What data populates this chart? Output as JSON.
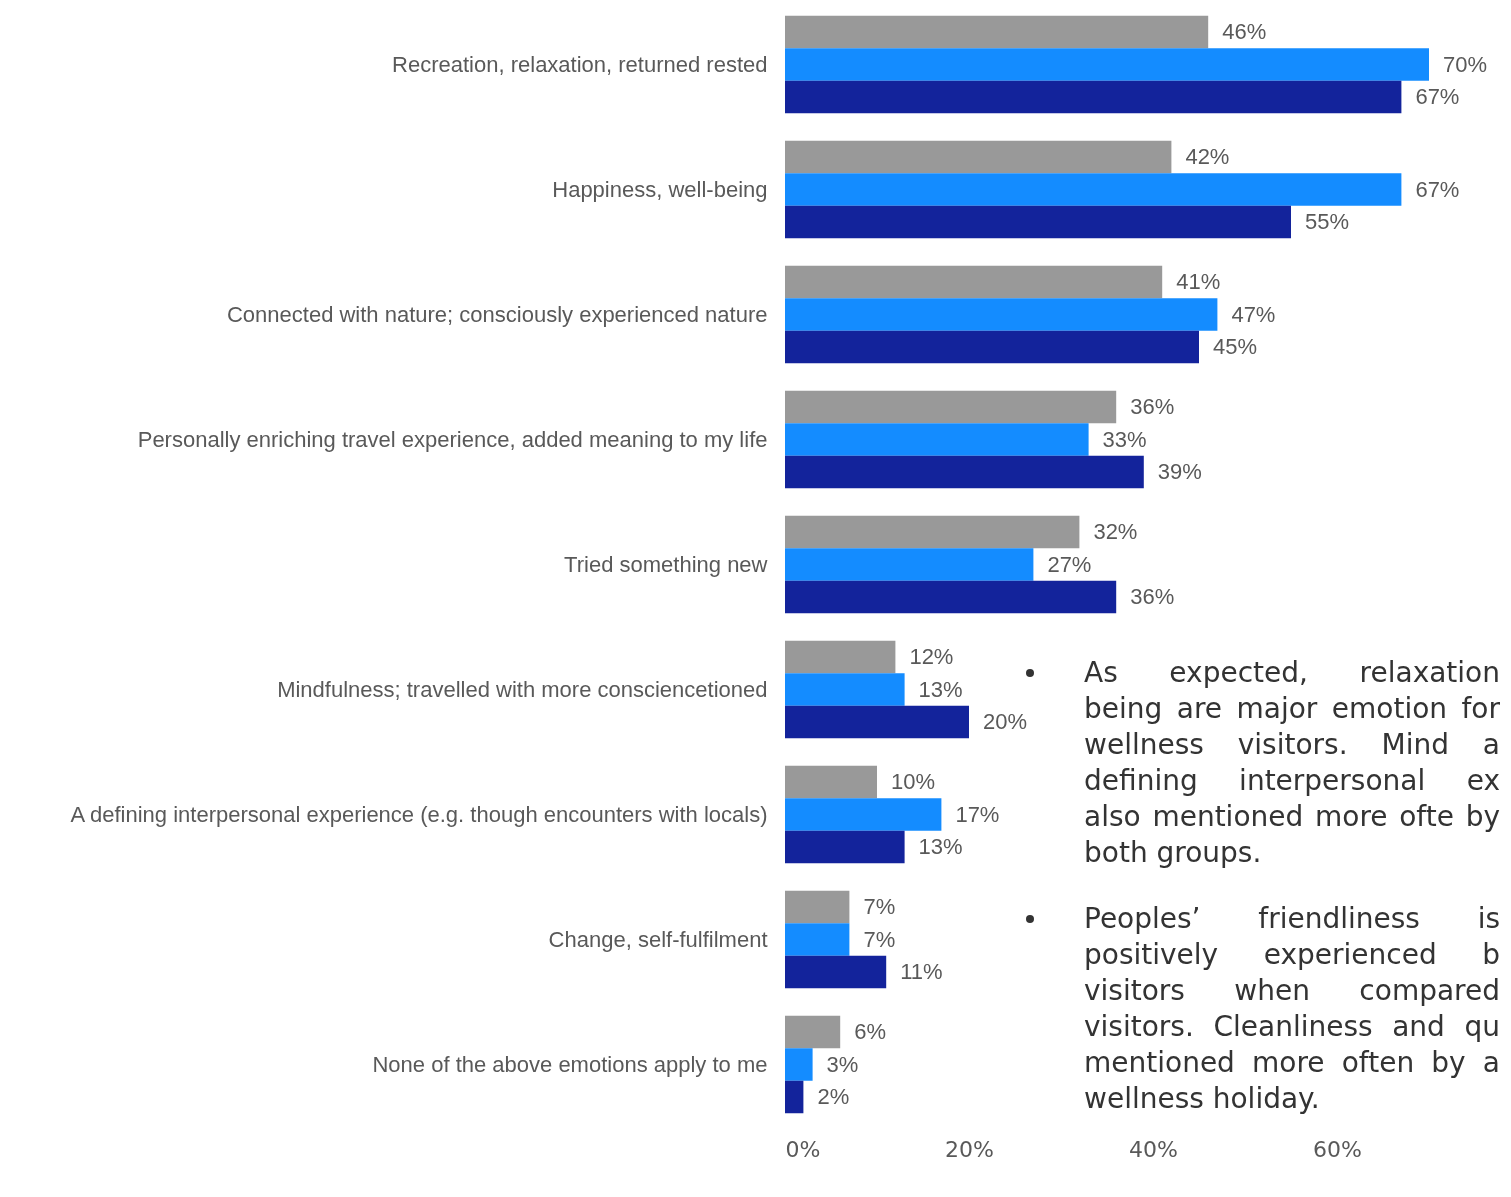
{
  "chart_data": {
    "type": "bar",
    "orientation": "horizontal",
    "categories": [
      "Recreation, relaxation, returned rested",
      "Happiness, well-being",
      "Connected with nature; consciously experienced nature",
      "Personally enriching travel experience, added meaning to my life",
      "Tried something new",
      "Mindfulness; travelled with more consciencetioned",
      "A defining interpersonal experience (e.g. though encounters with locals)",
      "Change, self-fulfilment",
      "None of the above emotions apply to me"
    ],
    "series": [
      {
        "color": "#999999",
        "values": [
          46,
          42,
          41,
          36,
          32,
          12,
          10,
          7,
          6
        ],
        "value_labels": [
          "46%",
          "42%",
          "41%",
          "36%",
          "32%",
          "12%",
          "10%",
          "7%",
          "6%"
        ]
      },
      {
        "color": "#148cff",
        "values": [
          70,
          67,
          47,
          33,
          27,
          13,
          17,
          7,
          3
        ],
        "value_labels": [
          "70%",
          "67%",
          "47%",
          "33%",
          "27%",
          "13%",
          "17%",
          "7%",
          "3%"
        ]
      },
      {
        "color": "#13239b",
        "values": [
          67,
          55,
          45,
          39,
          36,
          20,
          13,
          11,
          2
        ],
        "value_labels": [
          "67%",
          "55%",
          "45%",
          "39%",
          "36%",
          "20%",
          "13%",
          "11%",
          "2%"
        ]
      }
    ],
    "xlim": [
      0,
      70
    ],
    "xticks": [
      {
        "value": 0,
        "label": "0%"
      },
      {
        "value": 20,
        "label": "20%"
      },
      {
        "value": 40,
        "label": "40%"
      },
      {
        "value": 60,
        "label": "60%"
      }
    ],
    "grid": false,
    "annotations": [
      "As expected, relaxation being are major emotion for wellness visitors. Mind a defining interpersonal ex also mentioned more ofte by both groups.",
      "Peoples’ friendliness is positively experienced b visitors when compared visitors. Cleanliness and qu mentioned more often by a wellness holiday."
    ]
  }
}
